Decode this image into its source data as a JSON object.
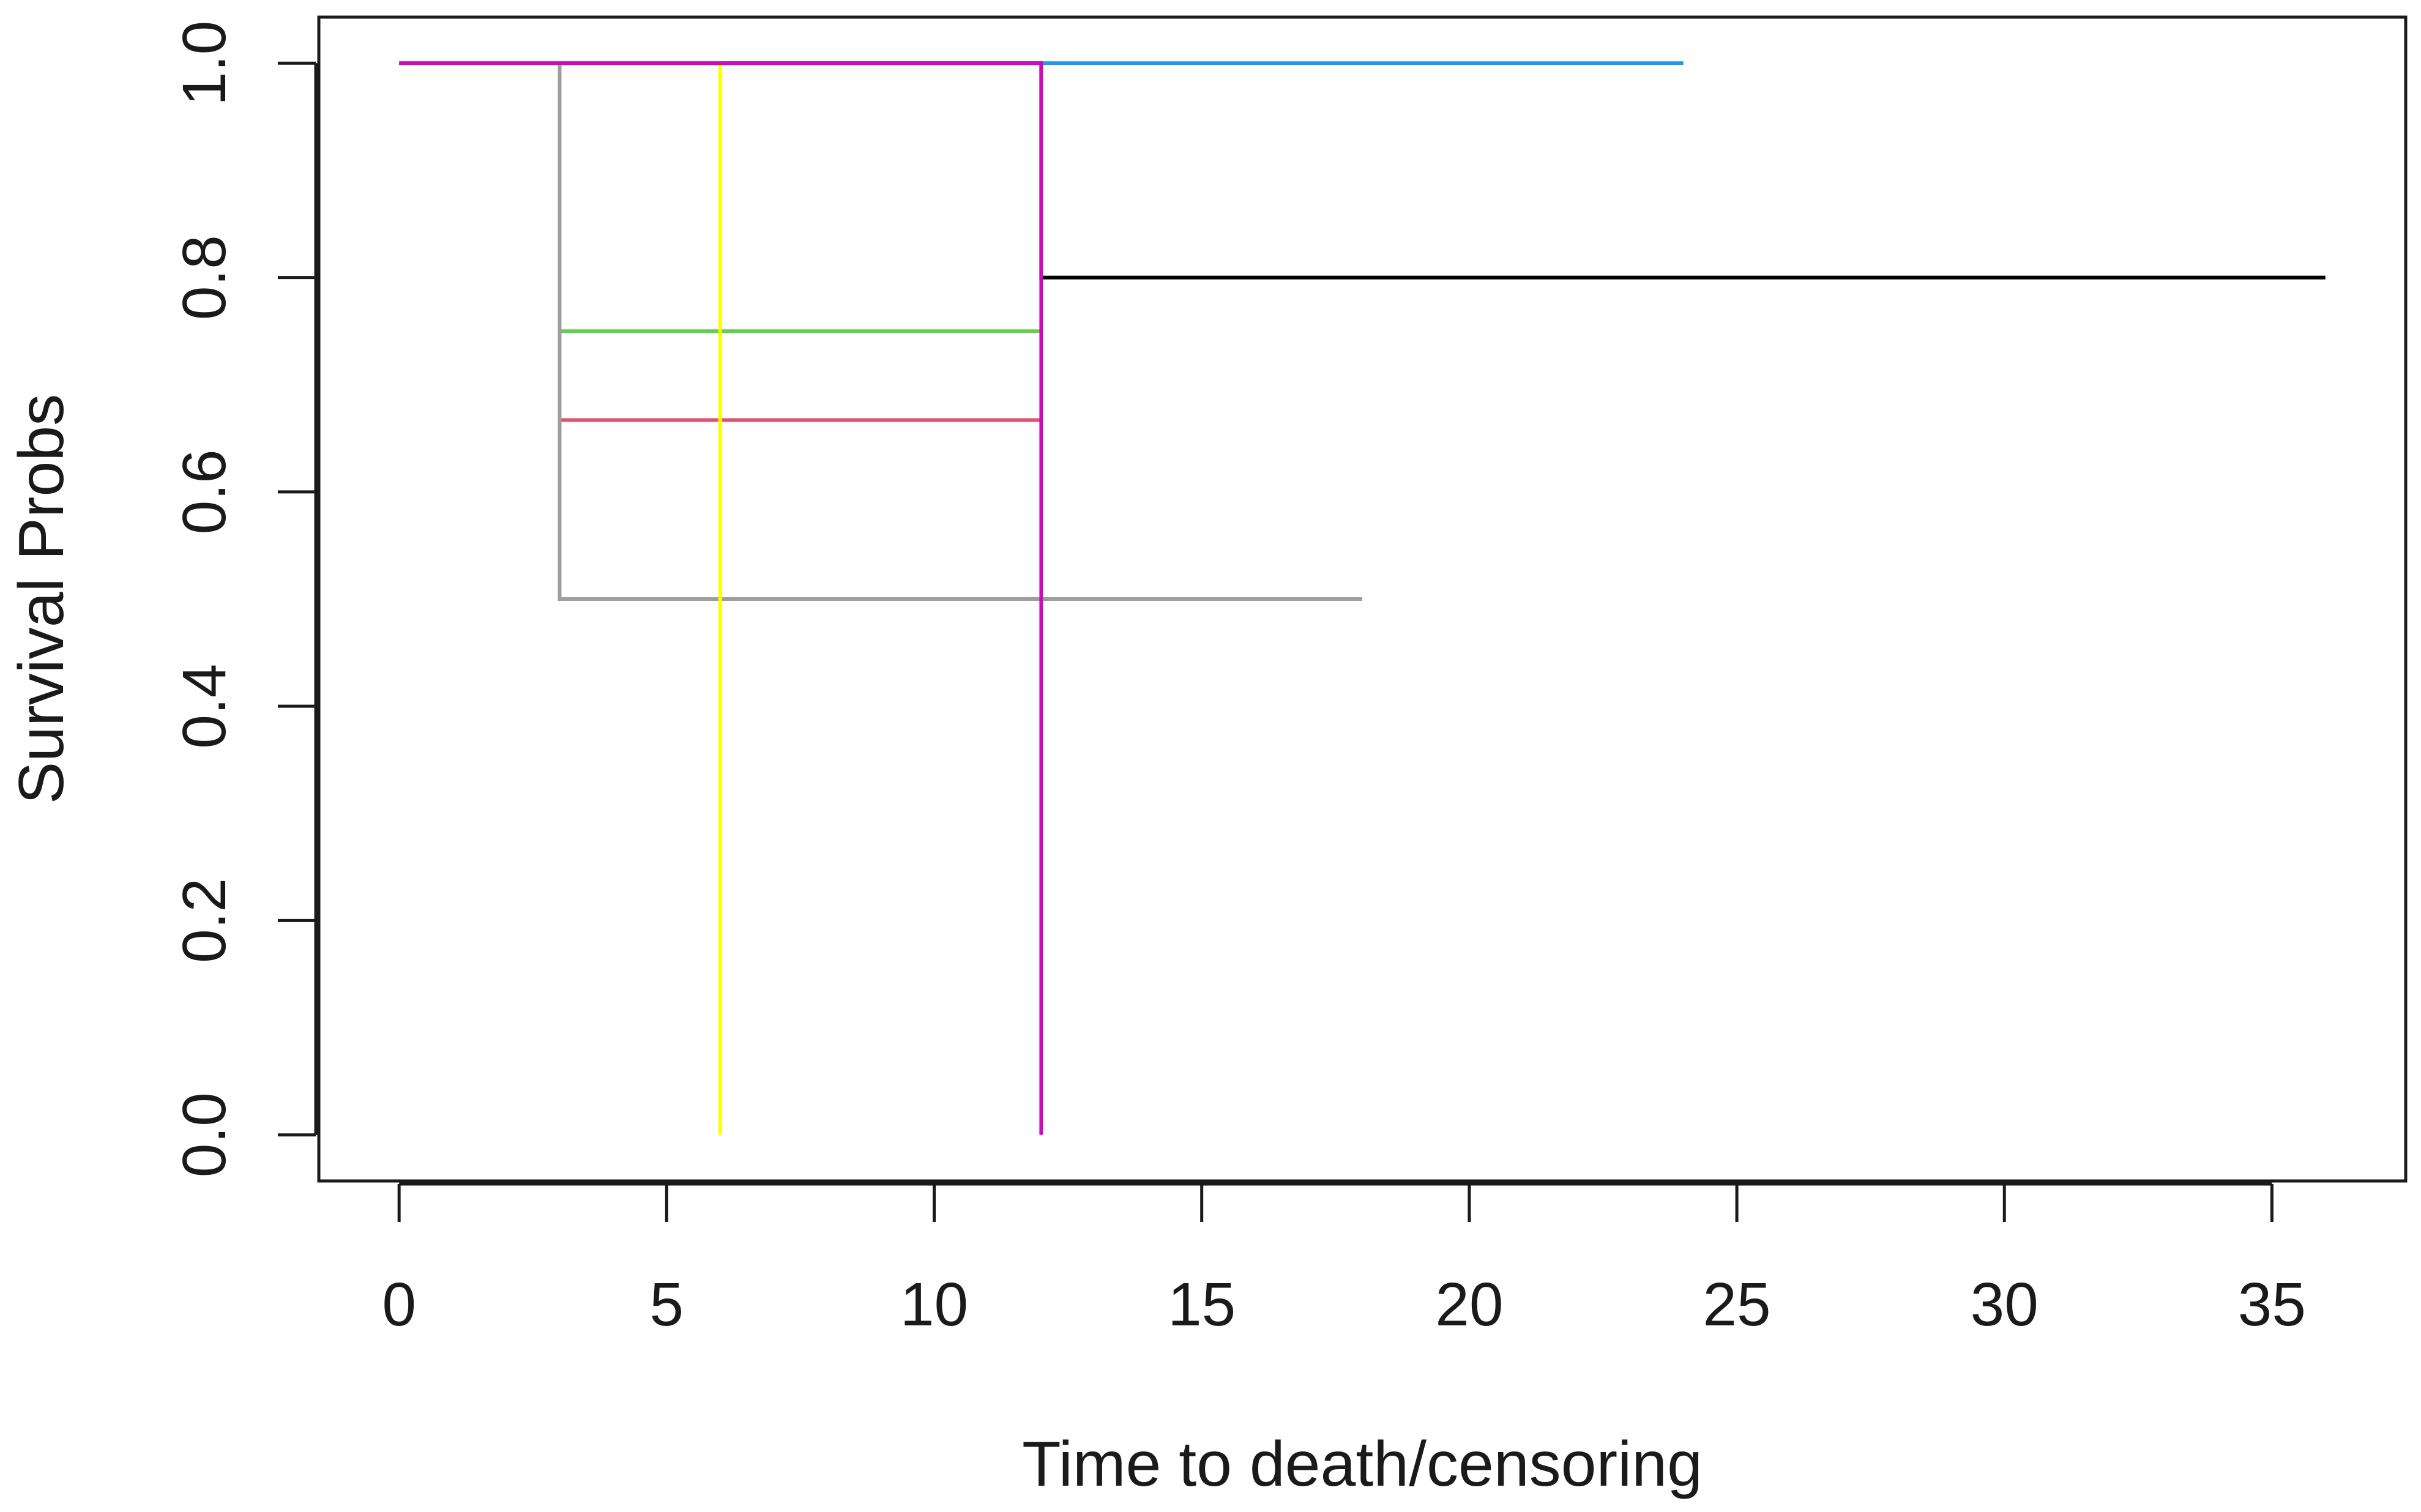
{
  "chart_data": {
    "type": "line",
    "title": "",
    "xlabel": "Time to death/censoring",
    "ylabel": "Survival Probs",
    "xlim": [
      -1.5,
      37.5
    ],
    "ylim": [
      -0.043,
      1.043
    ],
    "xticks": [
      0,
      5,
      10,
      15,
      20,
      25,
      30,
      35
    ],
    "yticks": [
      0.0,
      0.2,
      0.4,
      0.6,
      0.8,
      1.0
    ],
    "xtick_labels": [
      "0",
      "5",
      "10",
      "15",
      "20",
      "25",
      "30",
      "35"
    ],
    "ytick_labels": [
      "0.0",
      "0.2",
      "0.4",
      "0.6",
      "0.8",
      "1.0"
    ],
    "grid": false,
    "legend": "none",
    "step_style": "post",
    "series": [
      {
        "color": "#000000",
        "x": [
          0,
          12,
          36
        ],
        "y": [
          1.0,
          0.8,
          0.8
        ]
      },
      {
        "color": "#df536b",
        "x": [
          0,
          3,
          12
        ],
        "y": [
          1.0,
          0.667,
          0.667
        ]
      },
      {
        "color": "#61d04f",
        "x": [
          0,
          3,
          12
        ],
        "y": [
          1.0,
          0.75,
          0.75
        ]
      },
      {
        "color": "#2297e6",
        "x": [
          0,
          24
        ],
        "y": [
          1.0,
          1.0
        ]
      },
      {
        "color": "#28e2e5",
        "x": [
          0,
          12
        ],
        "y": [
          1.0,
          1.0
        ]
      },
      {
        "color": "#9e9e9e",
        "x": [
          0,
          3,
          18
        ],
        "y": [
          1.0,
          0.5,
          0.5
        ]
      },
      {
        "color": "#ffff00",
        "x": [
          0,
          6
        ],
        "y": [
          1.0,
          0.0
        ]
      },
      {
        "color": "#cd0bbc",
        "x": [
          0,
          12
        ],
        "y": [
          1.0,
          0.0
        ]
      }
    ]
  }
}
